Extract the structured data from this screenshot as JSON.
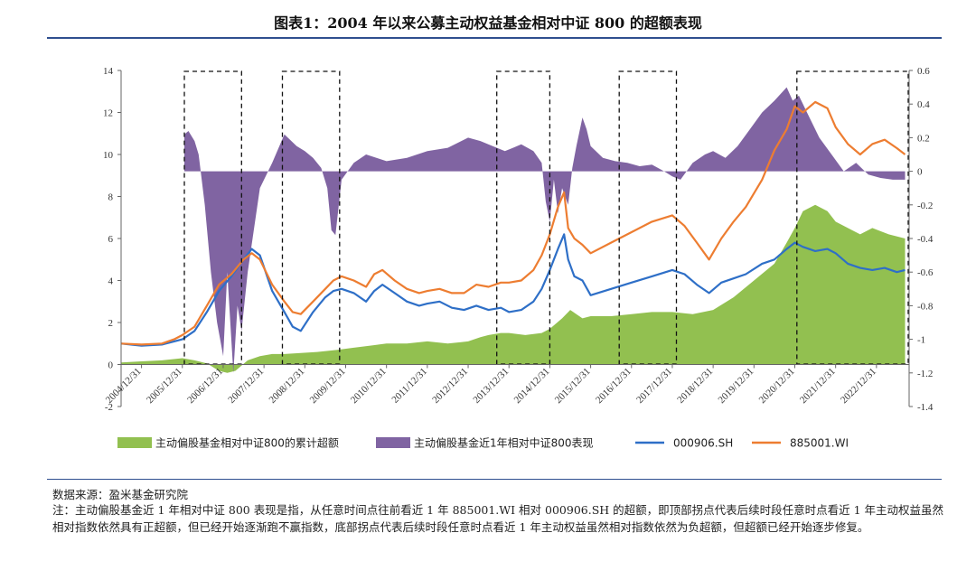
{
  "title": "图表1：2004 年以来公募主动权益基金相对中证 800 的超额表现",
  "source": "数据来源：盈米基金研究院",
  "note": "注：主动偏股基金近 1 年相对中证 800 表现是指，从任意时间点往前看近 1 年 885001.WI 相对 000906.SH 的超额，即顶部拐点代表后续时段任意时点看近 1 年主动权益虽然相对指数依然具有正超额，但已经开始逐渐跑不赢指数，底部拐点代表后续时段任意时点看近 1 年主动权益虽然相对指数依然为负超额，但超额已经开始逐步修复。",
  "chart_data": {
    "type": "area+line",
    "x_ticks": [
      "2004/12/31",
      "2005/12/31",
      "2006/12/31",
      "2007/12/31",
      "2008/12/31",
      "2009/12/31",
      "2010/12/31",
      "2011/12/31",
      "2012/12/31",
      "2013/12/31",
      "2014/12/31",
      "2015/12/31",
      "2016/12/31",
      "2017/12/31",
      "2018/12/31",
      "2019/12/31",
      "2020/12/31",
      "2021/12/31",
      "2022/12/31"
    ],
    "x_range": [
      2004.5,
      2023.8
    ],
    "y_left": {
      "range": [
        -2,
        14
      ],
      "ticks": [
        -2,
        0,
        2,
        4,
        6,
        8,
        10,
        12,
        14
      ]
    },
    "y_right": {
      "range": [
        -1.4,
        0.6
      ],
      "ticks": [
        -1.4,
        -1.2,
        -1,
        -0.8,
        -0.6,
        -0.4,
        -0.2,
        0,
        0.2,
        0.4,
        0.6
      ]
    },
    "highlight_periods": [
      [
        2006.05,
        2007.45
      ],
      [
        2008.45,
        2009.85
      ],
      [
        2013.7,
        2015.0
      ],
      [
        2016.7,
        2018.1
      ],
      [
        2021.05,
        2023.8
      ]
    ],
    "series": [
      {
        "name": "主动偏股基金相对中证800的累计超额",
        "type": "area",
        "axis": "left",
        "color": "#92c050",
        "x": [
          2004.5,
          2005.0,
          2005.5,
          2006.0,
          2006.3,
          2006.6,
          2006.9,
          2007.1,
          2007.3,
          2007.6,
          2007.9,
          2008.2,
          2008.5,
          2008.9,
          2009.3,
          2009.8,
          2010.2,
          2010.6,
          2011.0,
          2011.5,
          2012.0,
          2012.5,
          2013.0,
          2013.3,
          2013.5,
          2013.8,
          2014.0,
          2014.4,
          2014.8,
          2015.0,
          2015.3,
          2015.5,
          2015.8,
          2016.0,
          2016.5,
          2017.0,
          2017.5,
          2018.0,
          2018.5,
          2019.0,
          2019.5,
          2020.0,
          2020.5,
          2020.8,
          2021.0,
          2021.2,
          2021.5,
          2021.8,
          2022.0,
          2022.3,
          2022.6,
          2022.9,
          2023.3,
          2023.7
        ],
        "values": [
          0.1,
          0.15,
          0.2,
          0.3,
          0.2,
          0.05,
          -0.3,
          -0.4,
          -0.3,
          0.2,
          0.4,
          0.5,
          0.5,
          0.55,
          0.6,
          0.7,
          0.8,
          0.9,
          1.0,
          1.0,
          1.1,
          1.0,
          1.1,
          1.3,
          1.4,
          1.5,
          1.5,
          1.4,
          1.5,
          1.7,
          2.2,
          2.6,
          2.2,
          2.3,
          2.3,
          2.4,
          2.5,
          2.5,
          2.4,
          2.6,
          3.2,
          4.0,
          4.8,
          5.8,
          6.5,
          7.3,
          7.6,
          7.3,
          6.8,
          6.5,
          6.2,
          6.5,
          6.2,
          6.0
        ]
      },
      {
        "name": "主动偏股基金近1年相对中证800表现",
        "type": "area",
        "axis": "right",
        "color": "#8064a2",
        "x": [
          2006.05,
          2006.15,
          2006.3,
          2006.4,
          2006.55,
          2006.7,
          2006.85,
          2007.0,
          2007.1,
          2007.25,
          2007.35,
          2007.45,
          2007.6,
          2007.9,
          2008.2,
          2008.5,
          2008.8,
          2009.0,
          2009.2,
          2009.4,
          2009.55,
          2009.65,
          2009.75,
          2009.9,
          2010.2,
          2010.5,
          2011.0,
          2011.5,
          2012.0,
          2012.5,
          2013.0,
          2013.3,
          2013.6,
          2013.9,
          2014.1,
          2014.3,
          2014.6,
          2014.8,
          2014.9,
          2015.0,
          2015.1,
          2015.2,
          2015.3,
          2015.45,
          2015.55,
          2015.65,
          2015.8,
          2015.9,
          2016.0,
          2016.3,
          2016.6,
          2016.9,
          2017.2,
          2017.5,
          2017.8,
          2018.0,
          2018.2,
          2018.5,
          2018.8,
          2019.0,
          2019.3,
          2019.6,
          2019.9,
          2020.2,
          2020.5,
          2020.8,
          2020.95,
          2021.1,
          2021.3,
          2021.6,
          2021.9,
          2022.2,
          2022.5,
          2022.8,
          2023.1,
          2023.4,
          2023.7
        ],
        "values": [
          0.22,
          0.24,
          0.18,
          0.1,
          -0.2,
          -0.6,
          -0.9,
          -1.1,
          -0.6,
          -1.2,
          -0.8,
          -0.95,
          -0.6,
          -0.1,
          0.05,
          0.22,
          0.15,
          0.12,
          0.08,
          0.02,
          -0.1,
          -0.35,
          -0.38,
          -0.05,
          0.05,
          0.1,
          0.06,
          0.08,
          0.12,
          0.14,
          0.2,
          0.18,
          0.15,
          0.12,
          0.14,
          0.16,
          0.12,
          0.05,
          -0.18,
          -0.3,
          -0.05,
          -0.25,
          -0.1,
          -0.2,
          0.02,
          0.15,
          0.32,
          0.25,
          0.15,
          0.08,
          0.06,
          0.05,
          0.03,
          0.04,
          0.0,
          -0.03,
          -0.05,
          0.05,
          0.1,
          0.12,
          0.08,
          0.15,
          0.25,
          0.35,
          0.42,
          0.5,
          0.42,
          0.45,
          0.35,
          0.2,
          0.1,
          0.0,
          0.05,
          -0.02,
          -0.04,
          -0.05,
          -0.05
        ]
      },
      {
        "name": "000906.SH",
        "type": "line",
        "axis": "left",
        "color": "#2e6fc7",
        "x": [
          2004.5,
          2005.0,
          2005.5,
          2005.8,
          2006.0,
          2006.3,
          2006.6,
          2006.9,
          2007.2,
          2007.5,
          2007.7,
          2007.9,
          2008.2,
          2008.5,
          2008.7,
          2008.9,
          2009.2,
          2009.5,
          2009.7,
          2009.9,
          2010.2,
          2010.5,
          2010.7,
          2010.9,
          2011.2,
          2011.5,
          2011.8,
          2012.0,
          2012.3,
          2012.6,
          2012.9,
          2013.2,
          2013.5,
          2013.8,
          2014.0,
          2014.3,
          2014.6,
          2014.8,
          2015.0,
          2015.2,
          2015.35,
          2015.45,
          2015.6,
          2015.8,
          2016.0,
          2016.5,
          2017.0,
          2017.5,
          2018.0,
          2018.3,
          2018.6,
          2018.9,
          2019.2,
          2019.5,
          2019.8,
          2020.2,
          2020.5,
          2020.8,
          2021.0,
          2021.2,
          2021.5,
          2021.8,
          2022.0,
          2022.3,
          2022.6,
          2022.9,
          2023.2,
          2023.5,
          2023.7
        ],
        "values": [
          1.0,
          0.9,
          0.95,
          1.1,
          1.2,
          1.6,
          2.5,
          3.5,
          4.2,
          5.0,
          5.5,
          5.2,
          3.5,
          2.5,
          1.8,
          1.6,
          2.5,
          3.2,
          3.5,
          3.6,
          3.4,
          3.0,
          3.5,
          3.8,
          3.4,
          3.0,
          2.8,
          2.9,
          3.0,
          2.7,
          2.6,
          2.8,
          2.6,
          2.7,
          2.5,
          2.6,
          3.0,
          3.6,
          4.5,
          5.5,
          6.2,
          5.0,
          4.2,
          4.0,
          3.3,
          3.6,
          3.9,
          4.2,
          4.5,
          4.3,
          3.8,
          3.4,
          3.9,
          4.1,
          4.3,
          4.8,
          5.0,
          5.5,
          5.8,
          5.6,
          5.4,
          5.5,
          5.3,
          4.8,
          4.6,
          4.5,
          4.6,
          4.4,
          4.5
        ]
      },
      {
        "name": "885001.WI",
        "type": "line",
        "axis": "left",
        "color": "#ed7d31",
        "x": [
          2004.5,
          2005.0,
          2005.5,
          2005.8,
          2006.0,
          2006.3,
          2006.6,
          2006.9,
          2007.2,
          2007.5,
          2007.7,
          2007.9,
          2008.2,
          2008.5,
          2008.7,
          2008.9,
          2009.2,
          2009.5,
          2009.7,
          2009.9,
          2010.2,
          2010.5,
          2010.7,
          2010.9,
          2011.2,
          2011.5,
          2011.8,
          2012.0,
          2012.3,
          2012.6,
          2012.9,
          2013.2,
          2013.5,
          2013.8,
          2014.0,
          2014.3,
          2014.6,
          2014.8,
          2015.0,
          2015.2,
          2015.35,
          2015.45,
          2015.6,
          2015.8,
          2016.0,
          2016.5,
          2017.0,
          2017.5,
          2018.0,
          2018.3,
          2018.6,
          2018.9,
          2019.2,
          2019.5,
          2019.8,
          2020.2,
          2020.5,
          2020.8,
          2021.0,
          2021.2,
          2021.5,
          2021.8,
          2022.0,
          2022.3,
          2022.6,
          2022.9,
          2023.2,
          2023.5,
          2023.7
        ],
        "values": [
          1.0,
          0.95,
          1.0,
          1.2,
          1.4,
          1.8,
          2.8,
          3.8,
          4.3,
          5.0,
          5.3,
          5.0,
          3.8,
          3.0,
          2.5,
          2.4,
          3.0,
          3.6,
          4.0,
          4.2,
          4.0,
          3.7,
          4.3,
          4.5,
          4.0,
          3.6,
          3.4,
          3.5,
          3.6,
          3.4,
          3.4,
          3.8,
          3.7,
          3.9,
          3.9,
          4.0,
          4.5,
          5.2,
          6.2,
          7.5,
          8.2,
          6.5,
          6.0,
          5.7,
          5.3,
          5.8,
          6.3,
          6.8,
          7.1,
          6.6,
          5.8,
          5.0,
          6.0,
          6.8,
          7.5,
          8.8,
          10.2,
          11.2,
          12.3,
          12.0,
          12.5,
          12.2,
          11.3,
          10.5,
          10.0,
          10.5,
          10.7,
          10.3,
          10.0
        ]
      }
    ]
  }
}
